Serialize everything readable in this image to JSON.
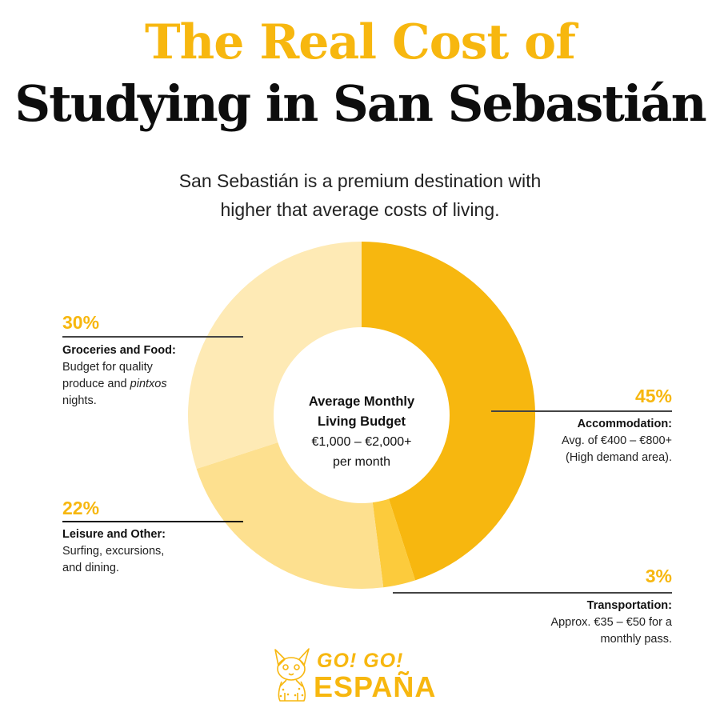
{
  "header": {
    "title_line1": "The Real Cost of",
    "title_line2": "Studying in San Sebastián",
    "subtitle_line1": "San Sebastián is a premium destination with",
    "subtitle_line2": "higher that average costs of living."
  },
  "center": {
    "line1": "Average Monthly",
    "line2": "Living Budget",
    "line3": "€1,000 – €2,000+",
    "line4": "per month"
  },
  "callouts": {
    "groceries": {
      "pct": "30%",
      "label": "Groceries and Food:",
      "desc1": "Budget for quality",
      "desc2_pre": "produce and ",
      "desc2_italic": "pintxos",
      "desc3": "nights."
    },
    "leisure": {
      "pct": "22%",
      "label": "Leisure and Other:",
      "desc1": "Surfing, excursions,",
      "desc2": "and dining."
    },
    "accommodation": {
      "pct": "45%",
      "label": "Accommodation:",
      "desc1": "Avg. of €400 – €800+",
      "desc2": "(High demand area)."
    },
    "transportation": {
      "pct": "3%",
      "label": "Transportation:",
      "desc1": "Approx. €35 – €50 for a",
      "desc2": "monthly pass."
    }
  },
  "logo": {
    "line1": "GO! GO!",
    "line2": "ESPAÑA",
    "icon": "lynx-mascot-icon"
  },
  "colors": {
    "accent": "#F7B70F",
    "accommodation": "#F7B70F",
    "transportation": "#FCCB3C",
    "leisure": "#FDE08F",
    "groceries": "#FEEAB5"
  },
  "chart_data": {
    "type": "pie",
    "subtype": "donut",
    "title": "Average Monthly Living Budget",
    "center_label": "€1,000 – €2,000+ per month",
    "categories": [
      "Accommodation",
      "Transportation",
      "Leisure and Other",
      "Groceries and Food"
    ],
    "values": [
      45,
      3,
      22,
      30
    ],
    "unit": "%",
    "colors": [
      "#F7B70F",
      "#FCCB3C",
      "#FDE08F",
      "#FEEAB5"
    ],
    "annotations": [
      "Accommodation: Avg. of €400 – €800+ (High demand area).",
      "Transportation: Approx. €35 – €50 for a monthly pass.",
      "Leisure and Other: Surfing, excursions, and dining.",
      "Groceries and Food: Budget for quality produce and pintxos nights."
    ]
  }
}
